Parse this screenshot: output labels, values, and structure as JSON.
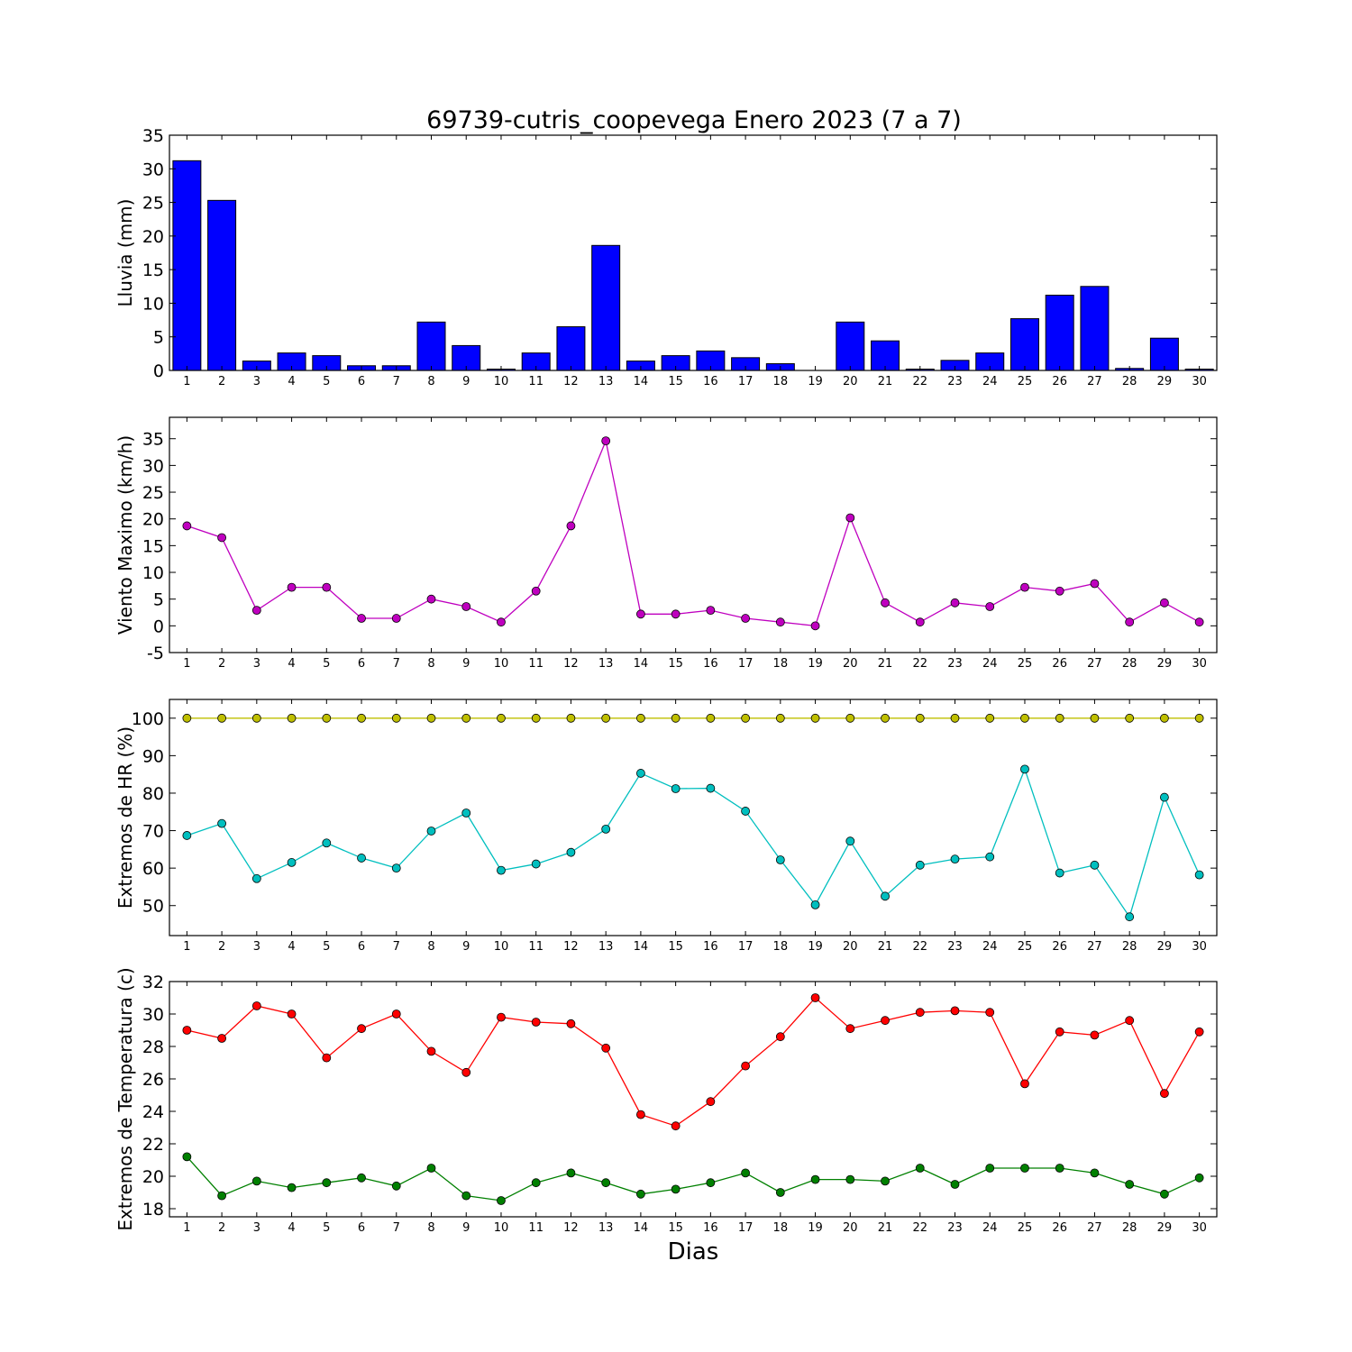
{
  "title": "69739-cutris_coopevega Enero 2023  (7 a 7)",
  "xlabel": "Dias",
  "chart_data": [
    {
      "type": "bar",
      "ylabel": "Lluvia (mm)",
      "ylim": [
        0,
        35
      ],
      "yticks": [
        0,
        5,
        10,
        15,
        20,
        25,
        30,
        35
      ],
      "x": [
        1,
        2,
        3,
        4,
        5,
        6,
        7,
        8,
        9,
        10,
        11,
        12,
        13,
        14,
        15,
        16,
        17,
        18,
        19,
        20,
        21,
        22,
        23,
        24,
        25,
        26,
        27,
        28,
        29,
        30
      ],
      "values": [
        31.2,
        25.3,
        1.4,
        2.6,
        2.2,
        0.7,
        0.7,
        7.2,
        3.7,
        0.2,
        2.6,
        6.5,
        18.6,
        1.4,
        2.2,
        2.9,
        1.9,
        1.0,
        0.0,
        7.2,
        4.4,
        0.2,
        1.5,
        2.6,
        7.7,
        11.2,
        12.5,
        0.3,
        4.8,
        0.2
      ],
      "colors": {
        "bar": "#0000ff"
      }
    },
    {
      "type": "line",
      "ylabel": "Viento Maximo (km/h)",
      "ylim": [
        -5,
        39
      ],
      "yticks": [
        -5,
        0,
        5,
        10,
        15,
        20,
        25,
        30,
        35
      ],
      "x": [
        1,
        2,
        3,
        4,
        5,
        6,
        7,
        8,
        9,
        10,
        11,
        12,
        13,
        14,
        15,
        16,
        17,
        18,
        19,
        20,
        21,
        22,
        23,
        24,
        25,
        26,
        27,
        28,
        29,
        30
      ],
      "series": [
        {
          "values": [
            18.7,
            16.5,
            2.9,
            7.2,
            7.2,
            1.4,
            1.4,
            5.0,
            3.6,
            0.7,
            6.5,
            18.7,
            34.6,
            2.2,
            2.2,
            2.9,
            1.4,
            0.7,
            0.0,
            20.2,
            4.3,
            0.7,
            4.3,
            3.6,
            7.2,
            6.5,
            7.9,
            0.7,
            4.3,
            0.7
          ],
          "color": "#bf00bf"
        }
      ]
    },
    {
      "type": "line",
      "ylabel": "Extremos de HR (%)",
      "ylim": [
        42,
        105
      ],
      "yticks": [
        50,
        60,
        70,
        80,
        90,
        100
      ],
      "x": [
        1,
        2,
        3,
        4,
        5,
        6,
        7,
        8,
        9,
        10,
        11,
        12,
        13,
        14,
        15,
        16,
        17,
        18,
        19,
        20,
        21,
        22,
        23,
        24,
        25,
        26,
        27,
        28,
        29,
        30
      ],
      "series": [
        {
          "values": [
            100,
            100,
            100,
            100,
            100,
            100,
            100,
            100,
            100,
            100,
            100,
            100,
            100,
            100,
            100,
            100,
            100,
            100,
            100,
            100,
            100,
            100,
            100,
            100,
            100,
            100,
            100,
            100,
            100,
            100
          ],
          "color": "#bfbf00"
        },
        {
          "values": [
            68.7,
            71.9,
            57.2,
            61.5,
            66.7,
            62.7,
            60.0,
            69.9,
            74.7,
            59.4,
            61.1,
            64.2,
            70.4,
            85.3,
            81.2,
            81.3,
            75.2,
            62.2,
            50.2,
            67.2,
            52.5,
            60.8,
            62.4,
            63.0,
            86.4,
            58.7,
            60.8,
            47.0,
            78.9,
            58.2
          ],
          "color": "#00bfbf"
        }
      ]
    },
    {
      "type": "line",
      "ylabel": "Extremos de Temperatura (c)",
      "ylim": [
        17.5,
        32
      ],
      "yticks": [
        18,
        20,
        22,
        24,
        26,
        28,
        30,
        32
      ],
      "x": [
        1,
        2,
        3,
        4,
        5,
        6,
        7,
        8,
        9,
        10,
        11,
        12,
        13,
        14,
        15,
        16,
        17,
        18,
        19,
        20,
        21,
        22,
        23,
        24,
        25,
        26,
        27,
        28,
        29,
        30
      ],
      "series": [
        {
          "values": [
            29.0,
            28.5,
            30.5,
            30.0,
            27.3,
            29.1,
            30.0,
            27.7,
            26.4,
            29.8,
            29.5,
            29.4,
            27.9,
            23.8,
            23.1,
            24.6,
            26.8,
            28.6,
            31.0,
            29.1,
            29.6,
            30.1,
            30.2,
            30.1,
            25.7,
            28.9,
            28.7,
            29.6,
            25.1,
            28.9
          ],
          "color": "#ff0000"
        },
        {
          "values": [
            21.2,
            18.8,
            19.7,
            19.3,
            19.6,
            19.9,
            19.4,
            20.5,
            18.8,
            18.5,
            19.6,
            20.2,
            19.6,
            18.9,
            19.2,
            19.6,
            20.2,
            19.0,
            19.8,
            19.8,
            19.7,
            20.5,
            19.5,
            20.5,
            20.5,
            20.5,
            20.2,
            19.5,
            18.9,
            19.9
          ],
          "color": "#008000"
        }
      ]
    }
  ]
}
